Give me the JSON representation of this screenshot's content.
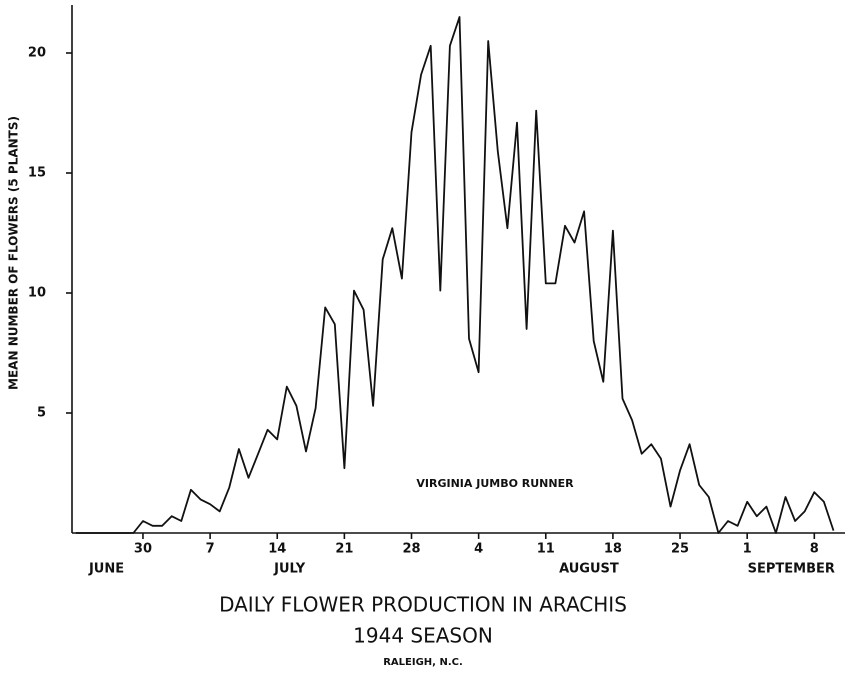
{
  "chart_data": {
    "type": "line",
    "title": "DAILY FLOWER PRODUCTION IN ARACHIS",
    "subtitle": "1944 SEASON",
    "note": "RALEIGH, N.C.",
    "annotation": "VIRGINIA JUMBO RUNNER",
    "y_label": "MEAN NUMBER OF FLOWERS (5 PLANTS)",
    "x": [
      23,
      24,
      25,
      26,
      27,
      28,
      29,
      30,
      31,
      32,
      33,
      34,
      35,
      36,
      37,
      38,
      39,
      40,
      41,
      42,
      43,
      44,
      45,
      46,
      47,
      48,
      49,
      50,
      51,
      52,
      53,
      54,
      55,
      56,
      57,
      58,
      59,
      60,
      61,
      62,
      63,
      64,
      65,
      66,
      67,
      68,
      69,
      70,
      71,
      72,
      73,
      74,
      75,
      76,
      77,
      78,
      79,
      80,
      81,
      82,
      83,
      84,
      85,
      86,
      87,
      88,
      89,
      90,
      91,
      92,
      93,
      94,
      95,
      96,
      97,
      98,
      99,
      100,
      101,
      102
    ],
    "series": [
      {
        "name": "VIRGINIA JUMBO RUNNER",
        "color": "#111111",
        "values": [
          0,
          0,
          0,
          0,
          0,
          0,
          0,
          0.5,
          0.3,
          0.3,
          0.7,
          0.5,
          1.8,
          1.4,
          1.2,
          0.9,
          1.9,
          3.5,
          2.3,
          3.3,
          4.3,
          3.9,
          6.1,
          5.3,
          3.4,
          5.2,
          9.4,
          8.7,
          2.7,
          10.1,
          9.3,
          5.3,
          11.4,
          12.7,
          10.6,
          16.7,
          19.1,
          20.3,
          10.1,
          20.3,
          21.5,
          8.1,
          6.7,
          20.5,
          15.9,
          12.7,
          17.1,
          8.5,
          17.6,
          10.4,
          10.4,
          12.8,
          12.1,
          13.4,
          8.0,
          6.3,
          12.6,
          5.6,
          4.7,
          3.3,
          3.7,
          3.1,
          1.1,
          2.6,
          3.7,
          2.0,
          1.5,
          0,
          0.5,
          0.3,
          1.3,
          0.7,
          1.1,
          0,
          1.5,
          0.5,
          0.9,
          1.7,
          1.3,
          0.1
        ]
      }
    ],
    "xlim": [
      22.6,
      103.2
    ],
    "xticks": [
      {
        "value": 30,
        "label": "30"
      },
      {
        "value": 37,
        "label": "7"
      },
      {
        "value": 44,
        "label": "14"
      },
      {
        "value": 51,
        "label": "21"
      },
      {
        "value": 58,
        "label": "28"
      },
      {
        "value": 65,
        "label": "4"
      },
      {
        "value": 72,
        "label": "11"
      },
      {
        "value": 79,
        "label": "18"
      },
      {
        "value": 86,
        "label": "25"
      },
      {
        "value": 93,
        "label": "1"
      },
      {
        "value": 100,
        "label": "8"
      }
    ],
    "month_labels": [
      {
        "value": 26.2,
        "label": "JUNE"
      },
      {
        "value": 45.3,
        "label": "JULY"
      },
      {
        "value": 76.5,
        "label": "AUGUST"
      },
      {
        "value": 97.6,
        "label": "SEPTEMBER"
      }
    ],
    "ylim": [
      0,
      22
    ],
    "yticks": [
      5,
      10,
      15,
      20
    ],
    "grid": false
  }
}
